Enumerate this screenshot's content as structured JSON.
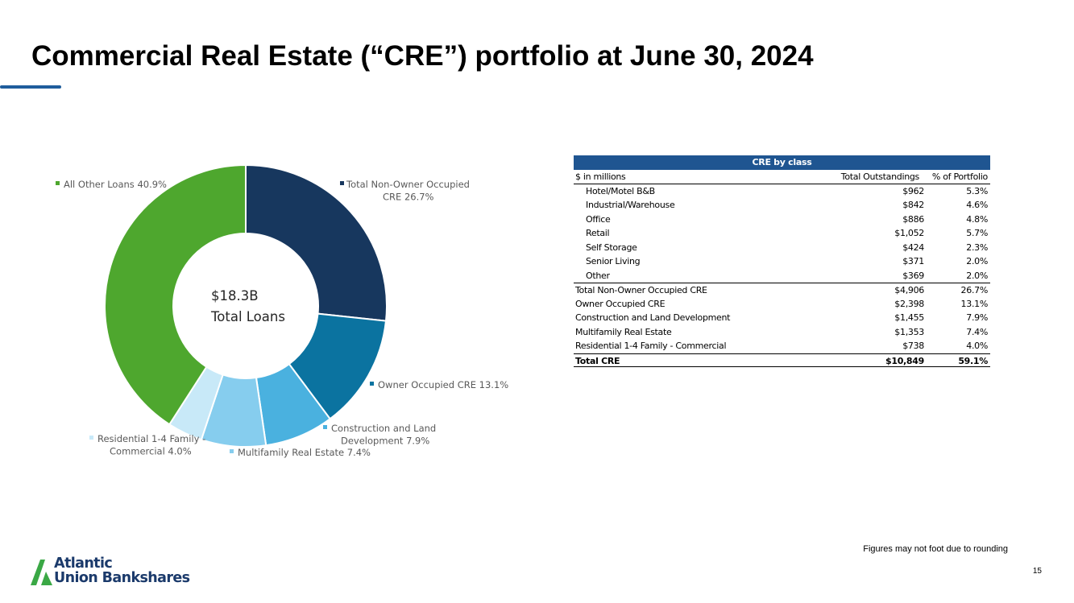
{
  "page": {
    "title": "Commercial Real Estate (“CRE”) portfolio at June 30, 2024",
    "footnote": "Figures may not foot due to rounding",
    "page_number": "15"
  },
  "logo": {
    "line1": "Atlantic",
    "line2": "Union Bankshares",
    "colors": {
      "navy": "#1b3a6b",
      "green": "#3aa845"
    }
  },
  "chart_data": {
    "type": "pie",
    "variant": "donut",
    "center_label": [
      "$18.3B",
      "Total Loans"
    ],
    "slices": [
      {
        "label": [
          "Total Non-Owner Occupied",
          "CRE 26.7%"
        ],
        "value": 26.7,
        "color": "#17375e"
      },
      {
        "label": [
          "Owner Occupied CRE 13.1%"
        ],
        "value": 13.1,
        "color": "#0b73a0"
      },
      {
        "label": [
          "Construction and Land",
          "Development 7.9%"
        ],
        "value": 7.9,
        "color": "#4ab1df"
      },
      {
        "label": [
          "Multifamily Real Estate 7.4%"
        ],
        "value": 7.4,
        "color": "#86cdee"
      },
      {
        "label": [
          "Residential 1-4 Family -",
          "Commercial 4.0%"
        ],
        "value": 4.0,
        "color": "#c8e9f8"
      },
      {
        "label": [
          "All Other Loans 40.9%"
        ],
        "value": 40.9,
        "color": "#4ea72e"
      }
    ]
  },
  "table": {
    "header": "CRE by class",
    "columns": [
      "$ in millions",
      "Total Outstandings",
      "% of Portfolio"
    ],
    "rows": [
      {
        "label": "Hotel/Motel B&B",
        "amount": "$962",
        "pct": "5.3%",
        "indent": true
      },
      {
        "label": "Industrial/Warehouse",
        "amount": "$842",
        "pct": "4.6%",
        "indent": true
      },
      {
        "label": "Office",
        "amount": "$886",
        "pct": "4.8%",
        "indent": true
      },
      {
        "label": "Retail",
        "amount": "$1,052",
        "pct": "5.7%",
        "indent": true
      },
      {
        "label": "Self Storage",
        "amount": "$424",
        "pct": "2.3%",
        "indent": true
      },
      {
        "label": "Senior Living",
        "amount": "$371",
        "pct": "2.0%",
        "indent": true
      },
      {
        "label": "Other",
        "amount": "$369",
        "pct": "2.0%",
        "indent": true
      },
      {
        "label": "Total Non-Owner Occupied CRE",
        "amount": "$4,906",
        "pct": "26.7%",
        "indent": false,
        "rule_above": true
      },
      {
        "label": "Owner Occupied CRE",
        "amount": "$2,398",
        "pct": "13.1%",
        "indent": false
      },
      {
        "label": "Construction and Land Development",
        "amount": "$1,455",
        "pct": "7.9%",
        "indent": false
      },
      {
        "label": "Multifamily Real Estate",
        "amount": "$1,353",
        "pct": "7.4%",
        "indent": false
      },
      {
        "label": "Residential 1-4 Family - Commercial",
        "amount": "$738",
        "pct": "4.0%",
        "indent": false
      },
      {
        "label": "Total CRE",
        "amount": "$10,849",
        "pct": "59.1%",
        "indent": false,
        "total": true
      }
    ]
  }
}
